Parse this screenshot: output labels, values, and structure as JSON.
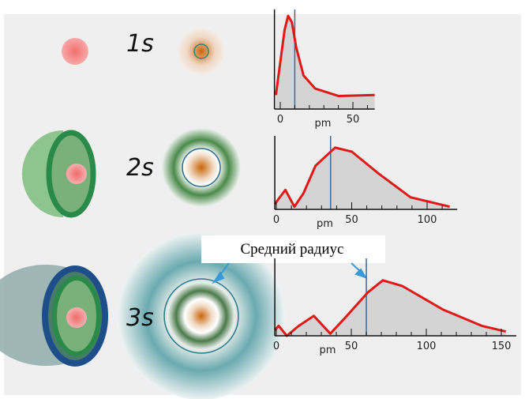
{
  "rows": [
    {
      "label": "1s",
      "plot": {
        "xlabel": "pm",
        "xlim": [
          -4,
          65
        ],
        "ylim": [
          0,
          1
        ],
        "xticks": [
          0,
          50
        ],
        "minorticks": [
          10,
          20,
          30,
          40,
          60
        ],
        "mean_radius": 10,
        "curve": {
          "x": [
            -3,
            0,
            3,
            5.4,
            8,
            11,
            16,
            24,
            40,
            65
          ],
          "y": [
            0.15,
            0.5,
            0.85,
            1.0,
            0.93,
            0.66,
            0.36,
            0.22,
            0.14,
            0.15
          ]
        }
      }
    },
    {
      "label": "2s",
      "plot": {
        "xlabel": "pm",
        "xlim": [
          -1,
          120
        ],
        "ylim": [
          0,
          1
        ],
        "xticks": [
          0,
          50,
          100
        ],
        "minorticks": [
          10,
          20,
          30,
          40,
          60,
          70,
          80,
          90,
          110
        ],
        "mean_radius": 36,
        "curve": {
          "x": [
            -1,
            6,
            12,
            18,
            26,
            39,
            50,
            68,
            89,
            115
          ],
          "y": [
            0.08,
            0.29,
            0.04,
            0.24,
            0.65,
            0.92,
            0.86,
            0.53,
            0.18,
            0.04
          ]
        }
      }
    },
    {
      "label": "3s",
      "plot": {
        "xlabel": "pm",
        "xlim": [
          -1,
          160
        ],
        "ylim": [
          0,
          1
        ],
        "xticks": [
          0,
          50,
          100,
          150
        ],
        "minorticks": [
          10,
          20,
          30,
          40,
          60,
          70,
          80,
          90,
          110,
          120,
          130,
          140
        ],
        "mean_radius": 60,
        "curve": {
          "x": [
            -1,
            1.6,
            7,
            15,
            25,
            36,
            47,
            61,
            71,
            84,
            111,
            137,
            153
          ],
          "y": [
            0.08,
            0.14,
            0,
            0.14,
            0.28,
            0.03,
            0.28,
            0.61,
            0.78,
            0.7,
            0.37,
            0.14,
            0.06
          ]
        }
      }
    }
  ],
  "callout": "Средний радиус"
}
